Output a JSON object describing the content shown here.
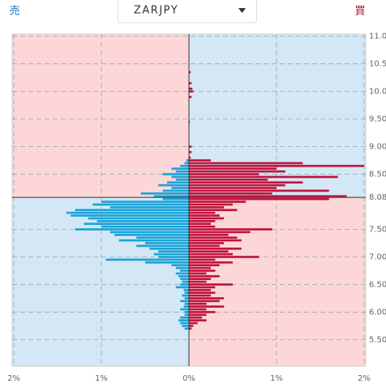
{
  "chart_data": {
    "type": "orderbook",
    "title": "ZARJPY",
    "sell_label": "売",
    "buy_label": "買",
    "x": [
      5.7,
      5.75,
      5.8,
      5.85,
      5.9,
      5.95,
      6.0,
      6.05,
      6.1,
      6.15,
      6.2,
      6.25,
      6.3,
      6.35,
      6.4,
      6.45,
      6.5,
      6.55,
      6.6,
      6.65,
      6.7,
      6.75,
      6.8,
      6.85,
      6.9,
      6.95,
      7.0,
      7.05,
      7.1,
      7.15,
      7.2,
      7.25,
      7.3,
      7.35,
      7.4,
      7.45,
      7.5,
      7.55,
      7.6,
      7.65,
      7.7,
      7.75,
      7.8,
      7.85,
      7.9,
      7.95,
      8.0,
      8.05,
      8.1,
      8.15,
      8.2,
      8.25,
      8.3,
      8.35,
      8.4,
      8.45,
      8.5,
      8.55,
      8.6,
      8.65,
      8.7,
      8.75,
      8.8,
      8.9,
      9.0,
      9.45,
      9.9,
      10.0,
      10.05,
      10.15,
      10.35
    ],
    "series": [
      {
        "side": "left",
        "color": "#1ba3d8",
        "values": [
          0.05,
          0.08,
          0.1,
          0.12,
          0.1,
          0.05,
          0.05,
          0.1,
          0.06,
          0.05,
          0.1,
          0.05,
          0.08,
          0.05,
          0.06,
          0.15,
          0.1,
          0.08,
          0.1,
          0.12,
          0.15,
          0.1,
          0.15,
          0.2,
          0.5,
          0.95,
          0.35,
          0.4,
          0.35,
          0.45,
          0.6,
          0.5,
          0.8,
          0.6,
          0.85,
          0.9,
          1.3,
          1.0,
          1.2,
          1.05,
          1.15,
          1.35,
          1.4,
          1.3,
          0.9,
          1.1,
          1.0,
          0.3,
          0.4,
          0.55,
          0.3,
          0.2,
          0.35,
          0.25,
          0.15,
          0.2,
          0.3,
          0.15,
          0.2,
          0.1,
          0.05,
          0.03,
          0,
          0,
          0,
          0,
          0,
          0,
          0,
          0,
          0
        ]
      },
      {
        "side": "right",
        "color": "#c0143c",
        "values": [
          0.03,
          0.05,
          0.1,
          0.2,
          0.15,
          0.2,
          0.3,
          0.2,
          0.4,
          0.2,
          0.35,
          0.4,
          0.25,
          0.3,
          0.25,
          0.3,
          0.5,
          0.2,
          0.25,
          0.35,
          0.2,
          0.3,
          0.25,
          0.35,
          0.5,
          0.3,
          0.8,
          0.5,
          0.45,
          0.6,
          0.35,
          0.4,
          0.6,
          0.55,
          0.45,
          0.7,
          0.95,
          0.3,
          0.25,
          0.3,
          0.4,
          0.35,
          0.3,
          0.55,
          0.4,
          0.5,
          0.65,
          1.6,
          1.8,
          0.95,
          1.6,
          1.0,
          1.1,
          1.3,
          0.9,
          1.7,
          0.8,
          1.1,
          1.0,
          2.0,
          1.3,
          0.25,
          0.02,
          0.03,
          0.03,
          0.01,
          0.03,
          0.05,
          0.04,
          0.03,
          0.02
        ]
      }
    ],
    "current_price": 8.08,
    "ylim": [
      5.02,
      11.04
    ],
    "yticks": [
      {
        "value": 5.5,
        "label": "5.50"
      },
      {
        "value": 6,
        "label": "6.00"
      },
      {
        "value": 6.5,
        "label": "6.50"
      },
      {
        "value": 7,
        "label": "7.00"
      },
      {
        "value": 7.5,
        "label": "7.50"
      },
      {
        "value": 8.5,
        "label": "8.50"
      },
      {
        "value": 9,
        "label": "9.00"
      },
      {
        "value": 9.5,
        "label": "9.50"
      },
      {
        "value": 10,
        "label": "10.00"
      },
      {
        "value": 10.5,
        "label": "10.50"
      },
      {
        "value": 11,
        "label": "11.00"
      }
    ],
    "xlim": [
      -2,
      2
    ],
    "xticks": [
      {
        "value": -2,
        "label": "2%"
      },
      {
        "value": -1,
        "label": "1%"
      },
      {
        "value": 0,
        "label": "0%"
      },
      {
        "value": 1,
        "label": "1%"
      },
      {
        "value": 2,
        "label": "2%"
      }
    ],
    "grid": true
  }
}
